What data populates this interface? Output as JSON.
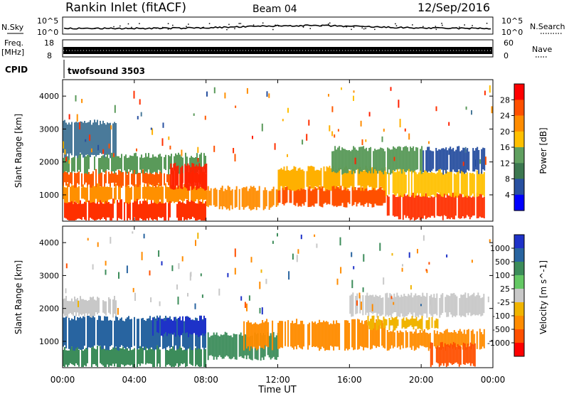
{
  "header": {
    "station": "Rankin Inlet (fitACF)",
    "beam": "Beam 04",
    "date": "12/Sep/2016"
  },
  "strip": {
    "nsky_label": "N.Sky",
    "nsearch_label": "N.Search",
    "freq_label": "Freq.",
    "freq_unit": "[MHz]",
    "nave_label": "Nave",
    "cpid_label": "CPID",
    "cpid_value": "twofsound 3503",
    "noise_ticks": [
      "10^5",
      "10^0"
    ],
    "freq_ticks": [
      "18",
      "8"
    ],
    "nave_ticks": [
      "60",
      "0"
    ]
  },
  "chart_data": [
    {
      "type": "heatmap",
      "title": "Power",
      "xlabel": "",
      "ylabel": "Slant Range [km]",
      "x_ticks": [
        "00:00",
        "04:00",
        "08:00",
        "12:00",
        "16:00",
        "20:00",
        "00:00"
      ],
      "y_ticks": [
        "1000",
        "2000",
        "3000",
        "4000"
      ],
      "ylim": [
        200,
        4500
      ],
      "colorbar": {
        "label": "Power [dB]",
        "ticks": [
          "28",
          "24",
          "20",
          "16",
          "12",
          "8",
          "4"
        ],
        "colors": [
          "#ff0000",
          "#ff5000",
          "#ff8c00",
          "#ffc000",
          "#60a060",
          "#3c7850",
          "#2850a0",
          "#0000ff"
        ]
      },
      "bands": [
        {
          "t0": 0.0,
          "t1": 8.0,
          "r0": 250,
          "r1": 800,
          "color": "#ff3000"
        },
        {
          "t0": 0.0,
          "t1": 8.0,
          "r0": 800,
          "r1": 1300,
          "color": "#ff9000"
        },
        {
          "t0": 0.0,
          "t1": 8.0,
          "r0": 1300,
          "r1": 1700,
          "color": "#ff5a00"
        },
        {
          "t0": 0.0,
          "t1": 8.0,
          "r0": 1700,
          "r1": 2200,
          "color": "#5a9a5a"
        },
        {
          "t0": 0.0,
          "t1": 3.0,
          "r0": 2200,
          "r1": 3200,
          "color": "#4a7a9a"
        },
        {
          "t0": 6.0,
          "t1": 8.0,
          "r0": 1200,
          "r1": 1900,
          "color": "#ff2000"
        },
        {
          "t0": 8.0,
          "t1": 12.0,
          "r0": 600,
          "r1": 1200,
          "color": "#ff8c00"
        },
        {
          "t0": 12.0,
          "t1": 18.0,
          "r0": 700,
          "r1": 1200,
          "color": "#ff5000"
        },
        {
          "t0": 12.0,
          "t1": 18.0,
          "r0": 1200,
          "r1": 1800,
          "color": "#ffb000"
        },
        {
          "t0": 15.0,
          "t1": 20.0,
          "r0": 1700,
          "r1": 2400,
          "color": "#5a9a5a"
        },
        {
          "t0": 18.0,
          "t1": 23.5,
          "r0": 300,
          "r1": 1000,
          "color": "#ff3000"
        },
        {
          "t0": 18.0,
          "t1": 23.5,
          "r0": 1000,
          "r1": 1700,
          "color": "#ffc000"
        },
        {
          "t0": 20.0,
          "t1": 23.5,
          "r0": 1700,
          "r1": 2400,
          "color": "#2850a0"
        }
      ]
    },
    {
      "type": "heatmap",
      "title": "Velocity",
      "xlabel": "Time UT",
      "ylabel": "Slant Range [km]",
      "x_ticks": [
        "00:00",
        "04:00",
        "08:00",
        "12:00",
        "16:00",
        "20:00",
        "00:00"
      ],
      "y_ticks": [
        "1000",
        "2000",
        "3000",
        "4000"
      ],
      "ylim": [
        200,
        4500
      ],
      "colorbar": {
        "label": "Velocity [m s^-1]",
        "ticks": [
          "1000",
          "500",
          "100",
          "25",
          "-25",
          "-100",
          "-500",
          "-1000"
        ],
        "colors": [
          "#1e32c8",
          "#2864a0",
          "#3c8c5a",
          "#64c864",
          "#c8c8c8",
          "#f0b400",
          "#ff8c00",
          "#ff5000",
          "#ff0000"
        ]
      },
      "bands": [
        {
          "t0": 0.0,
          "t1": 8.0,
          "r0": 250,
          "r1": 800,
          "color": "#3c8c5a"
        },
        {
          "t0": 0.0,
          "t1": 8.0,
          "r0": 800,
          "r1": 1700,
          "color": "#2864a0"
        },
        {
          "t0": 0.0,
          "t1": 3.0,
          "r0": 1800,
          "r1": 2300,
          "color": "#c8c8c8"
        },
        {
          "t0": 5.0,
          "t1": 8.0,
          "r0": 1200,
          "r1": 1700,
          "color": "#1e32c8"
        },
        {
          "t0": 8.0,
          "t1": 12.0,
          "r0": 500,
          "r1": 1200,
          "color": "#3c8c5a"
        },
        {
          "t0": 10.0,
          "t1": 18.0,
          "r0": 800,
          "r1": 1600,
          "color": "#ff8c00"
        },
        {
          "t0": 16.0,
          "t1": 23.5,
          "r0": 1800,
          "r1": 2400,
          "color": "#c8c8c8"
        },
        {
          "t0": 18.0,
          "t1": 23.5,
          "r0": 800,
          "r1": 1300,
          "color": "#ff8c00"
        },
        {
          "t0": 20.5,
          "t1": 23.0,
          "r0": 300,
          "r1": 900,
          "color": "#ff5000"
        },
        {
          "t0": 17.0,
          "t1": 21.0,
          "r0": 1400,
          "r1": 1700,
          "color": "#f0b400"
        }
      ]
    }
  ]
}
